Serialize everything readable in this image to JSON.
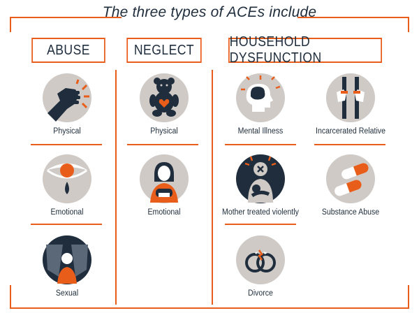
{
  "title": "The three types of ACEs include",
  "categories": [
    {
      "name": "ABUSE",
      "items": [
        {
          "label": "Physical",
          "icon": "fist-icon"
        },
        {
          "label": "Emotional",
          "icon": "tearful-eye-icon"
        },
        {
          "label": "Sexual",
          "icon": "curtained-child-icon"
        }
      ]
    },
    {
      "name": "NEGLECT",
      "items": [
        {
          "label": "Physical",
          "icon": "teddy-bear-icon"
        },
        {
          "label": "Emotional",
          "icon": "sitting-child-icon"
        }
      ]
    },
    {
      "name": "HOUSEHOLD DYSFUNCTION",
      "items": [
        {
          "label": "Mental Illness",
          "icon": "head-brain-icon"
        },
        {
          "label": "Incarcerated Relative",
          "icon": "prison-bars-icon"
        },
        {
          "label": "Mother treated violently",
          "icon": "injured-mother-icon"
        },
        {
          "label": "Substance Abuse",
          "icon": "pills-icon"
        },
        {
          "label": "Divorce",
          "icon": "broken-rings-icon"
        }
      ]
    }
  ],
  "colors": {
    "accent": "#e85d1a",
    "navy": "#1f2d3d",
    "circle": "#cfcac6"
  }
}
